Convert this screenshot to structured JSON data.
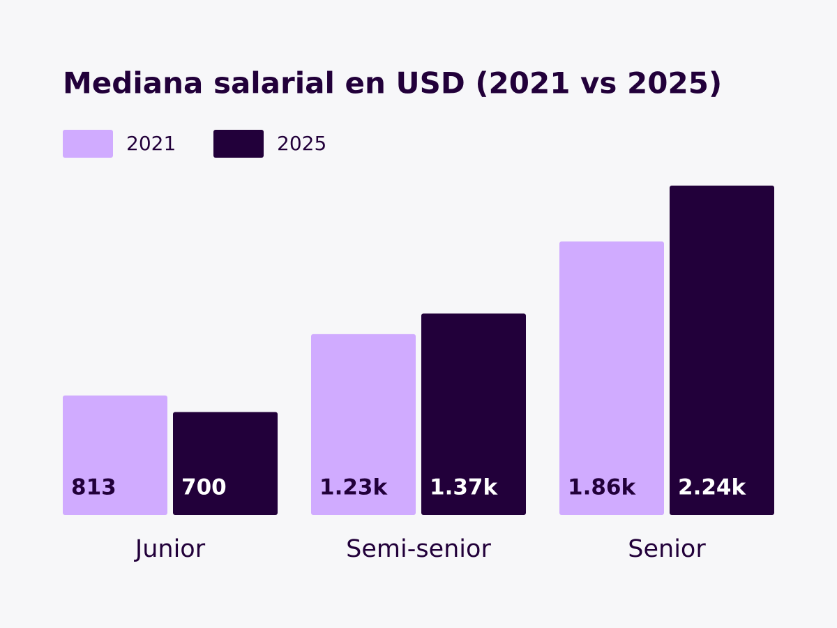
{
  "chart_data": {
    "type": "bar",
    "title": "Mediana salarial en USD (2021 vs 2025)",
    "categories": [
      "Junior",
      "Semi-senior",
      "Senior"
    ],
    "series": [
      {
        "name": "2021",
        "color": "#d0abff",
        "values": [
          813,
          1230,
          1860
        ],
        "value_labels": [
          "813",
          "1.23k",
          "1.86k"
        ]
      },
      {
        "name": "2025",
        "color": "#22003a",
        "values": [
          700,
          1370,
          2240
        ],
        "value_labels": [
          "700",
          "1.37k",
          "2.24k"
        ]
      }
    ]
  }
}
